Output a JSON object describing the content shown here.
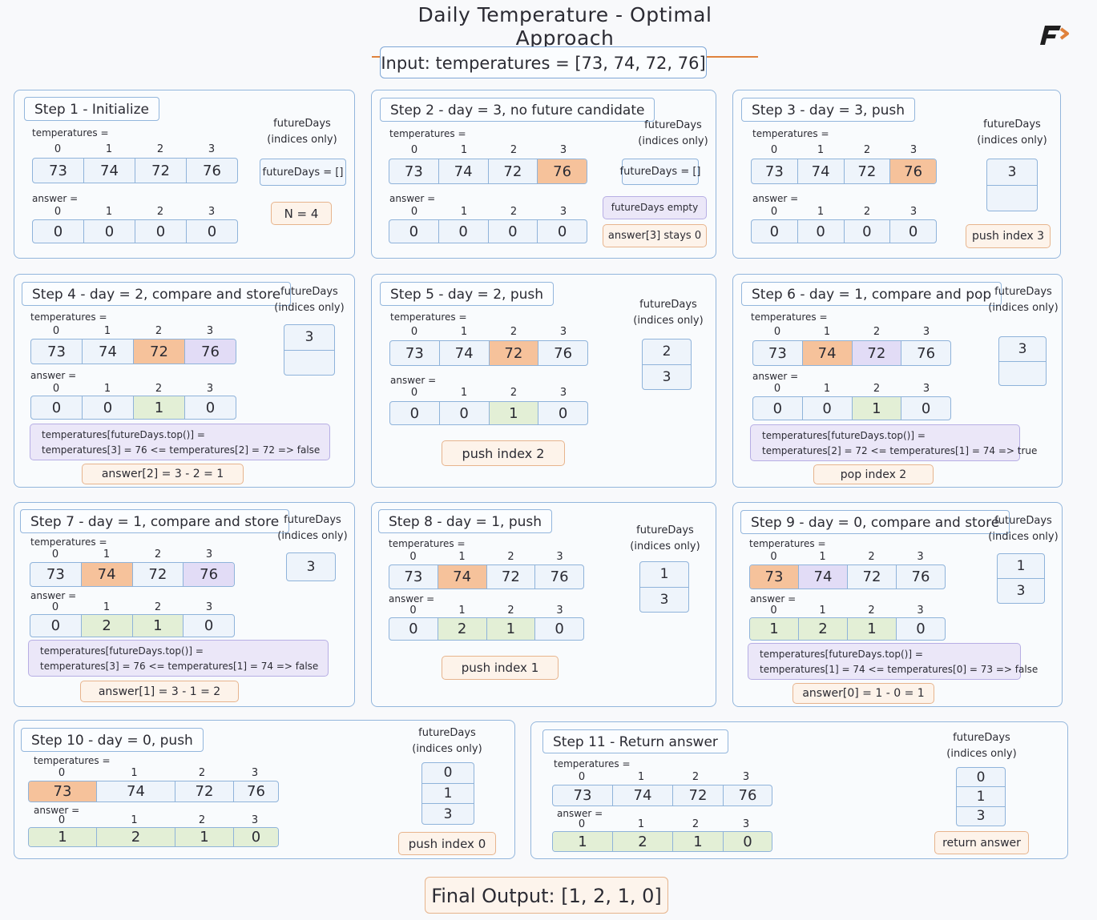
{
  "title": "Daily Temperature - Optimal Approach",
  "input": "Input: temperatures = [73, 74, 72, 76]",
  "final_output": "Final Output: [1, 2, 1, 0]",
  "labels": {
    "temperatures": "temperatures =",
    "answer": "answer =",
    "future_days": "futureDays",
    "indices_only": "(indices only)",
    "indices": [
      "0",
      "1",
      "2",
      "3"
    ]
  },
  "steps": [
    {
      "title": "Step 1 - Initialize",
      "temps": [
        "73",
        "74",
        "72",
        "76"
      ],
      "answer": [
        "0",
        "0",
        "0",
        "0"
      ],
      "notes": {
        "fd_empty_box": "futureDays = []",
        "n": "N = 4"
      }
    },
    {
      "title": "Step 2 - day = 3, no future candidate",
      "temps": [
        "73",
        "74",
        "72",
        "76"
      ],
      "answer": [
        "0",
        "0",
        "0",
        "0"
      ],
      "notes": {
        "fd_empty_box": "futureDays = []",
        "empty": "futureDays empty",
        "stays": "answer[3] stays 0"
      }
    },
    {
      "title": "Step 3 - day = 3, push",
      "temps": [
        "73",
        "74",
        "72",
        "76"
      ],
      "answer": [
        "0",
        "0",
        "0",
        "0"
      ],
      "stack": [
        "3",
        ""
      ],
      "notes": {
        "push": "push index 3"
      }
    },
    {
      "title": "Step 4 - day = 2, compare and store",
      "temps": [
        "73",
        "74",
        "72",
        "76"
      ],
      "answer": [
        "0",
        "0",
        "1",
        "0"
      ],
      "stack": [
        "3",
        ""
      ],
      "notes": {
        "cmp1": "temperatures[futureDays.top()] =",
        "cmp2": "temperatures[3] = 76 <= temperatures[2] = 72 => false",
        "result": "answer[2] = 3 - 2 = 1"
      }
    },
    {
      "title": "Step 5 - day = 2, push",
      "temps": [
        "73",
        "74",
        "72",
        "76"
      ],
      "answer": [
        "0",
        "0",
        "1",
        "0"
      ],
      "stack": [
        "2",
        "3"
      ],
      "notes": {
        "push": "push index 2"
      }
    },
    {
      "title": "Step 6 - day = 1, compare and pop",
      "temps": [
        "73",
        "74",
        "72",
        "76"
      ],
      "answer": [
        "0",
        "0",
        "1",
        "0"
      ],
      "stack": [
        "3",
        ""
      ],
      "notes": {
        "cmp1": "temperatures[futureDays.top()] =",
        "cmp2": "temperatures[2] = 72 <= temperatures[1] = 74 => true",
        "result": "pop index 2"
      }
    },
    {
      "title": "Step 7 - day = 1, compare and store",
      "temps": [
        "73",
        "74",
        "72",
        "76"
      ],
      "answer": [
        "0",
        "2",
        "1",
        "0"
      ],
      "stack": [
        "3"
      ],
      "notes": {
        "cmp1": "temperatures[futureDays.top()] =",
        "cmp2": "temperatures[3] = 76 <= temperatures[1] = 74 => false",
        "result": "answer[1] = 3 - 1 = 2"
      }
    },
    {
      "title": "Step 8 - day = 1, push",
      "temps": [
        "73",
        "74",
        "72",
        "76"
      ],
      "answer": [
        "0",
        "2",
        "1",
        "0"
      ],
      "stack": [
        "1",
        "3"
      ],
      "notes": {
        "push": "push index 1"
      }
    },
    {
      "title": "Step 9 - day = 0, compare and store",
      "temps": [
        "73",
        "74",
        "72",
        "76"
      ],
      "answer": [
        "1",
        "2",
        "1",
        "0"
      ],
      "stack": [
        "1",
        "3"
      ],
      "notes": {
        "cmp1": "temperatures[futureDays.top()] =",
        "cmp2": "temperatures[1] = 74 <= temperatures[0] = 73 => false",
        "result": "answer[0] = 1 - 0 = 1"
      }
    },
    {
      "title": "Step 10 - day = 0, push",
      "temps": [
        "73",
        "74",
        "72",
        "76"
      ],
      "answer": [
        "1",
        "2",
        "1",
        "0"
      ],
      "stack": [
        "0",
        "1",
        "3"
      ],
      "notes": {
        "push": "push index 0"
      }
    },
    {
      "title": "Step 11 - Return answer",
      "temps": [
        "73",
        "74",
        "72",
        "76"
      ],
      "answer": [
        "1",
        "2",
        "1",
        "0"
      ],
      "stack": [
        "0",
        "1",
        "3"
      ],
      "notes": {
        "ret": "return answer"
      }
    }
  ],
  "colors": {
    "highlight_current": "#f6c29b",
    "highlight_compare": "#e2dcf6",
    "answer_filled": "#e3efd6",
    "border": "#93b6dc",
    "accent": "#e0823c"
  }
}
